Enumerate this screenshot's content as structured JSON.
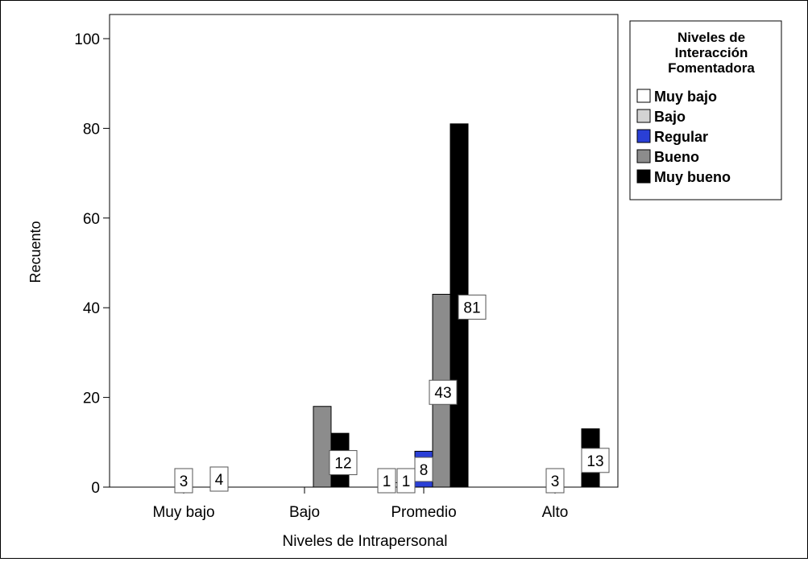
{
  "chart_data": {
    "type": "bar",
    "xlabel": "Niveles de Intrapersonal",
    "ylabel": "Recuento",
    "ylim": [
      0,
      100
    ],
    "yticks": [
      "0",
      "20",
      "40",
      "60",
      "80",
      "100"
    ],
    "grid": false,
    "legend_placement": "top-right",
    "categories": [
      "Muy bajo",
      "Bajo",
      "Promedio",
      "Alto"
    ],
    "legend_title": [
      "Niveles de",
      "Interacción",
      "Fomentadora"
    ],
    "series": [
      {
        "name": "Muy bajo",
        "color": "#ffffff",
        "values": [
          0,
          0,
          1,
          0
        ],
        "labels": [
          "",
          "",
          "1",
          ""
        ]
      },
      {
        "name": "Bajo",
        "color": "#d3d3d3",
        "values": [
          0,
          0,
          1,
          0
        ],
        "labels": [
          "",
          "",
          "1",
          ""
        ]
      },
      {
        "name": "Regular",
        "color": "#2a3fd6",
        "values": [
          3,
          0,
          8,
          3
        ],
        "labels": [
          "3",
          "",
          "8",
          "3"
        ]
      },
      {
        "name": "Bueno",
        "color": "#8c8c8c",
        "values": [
          0,
          18,
          43,
          0
        ],
        "labels": [
          "",
          "",
          "43",
          ""
        ]
      },
      {
        "name": "Muy bueno",
        "color": "#000000",
        "values": [
          4,
          12,
          81,
          13
        ],
        "labels": [
          "4",
          "12",
          "81",
          "13"
        ]
      }
    ]
  }
}
